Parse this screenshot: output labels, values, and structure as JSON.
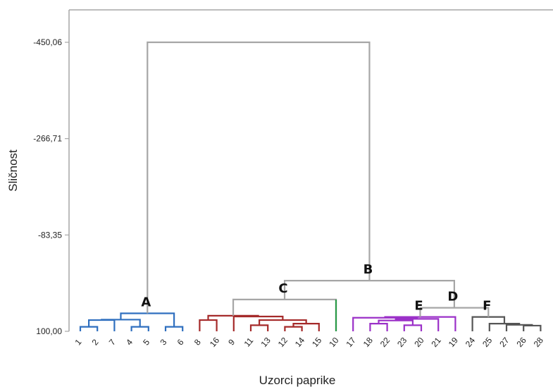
{
  "chart_data": {
    "type": "dendrogram",
    "ylabel": "Sličnost",
    "xlabel": "Uzorci paprike",
    "yticks": [
      {
        "value": -450.06,
        "label": "-450,06"
      },
      {
        "value": -266.71,
        "label": "-266,71"
      },
      {
        "value": -83.35,
        "label": "-83,35"
      },
      {
        "value": 100.0,
        "label": "100,00"
      }
    ],
    "ylim": [
      100.0,
      -540.0
    ],
    "leaves": [
      "1",
      "2",
      "7",
      "4",
      "5",
      "3",
      "6",
      "8",
      "16",
      "9",
      "11",
      "13",
      "12",
      "14",
      "15",
      "10",
      "17",
      "18",
      "22",
      "23",
      "20",
      "21",
      "19",
      "24",
      "25",
      "27",
      "26",
      "28"
    ],
    "colors": {
      "A": "#2f6fbf",
      "C": "#a52a2a",
      "single": "#2a9a48",
      "E": "#9b30c8",
      "F": "#555555",
      "link": "#a6a6a6",
      "axis": "#a6a6a6"
    },
    "merges": [
      {
        "left": "1",
        "right": "2",
        "height": 91.4,
        "color": "A"
      },
      {
        "left": "4",
        "right": "5",
        "height": 91.4,
        "color": "A"
      },
      {
        "left": "3",
        "right": "6",
        "height": 91.4,
        "color": "A"
      },
      {
        "left": "m1",
        "right": "7",
        "height": 78.6,
        "color": "A"
      },
      {
        "left": "m4",
        "right": "m2",
        "height": 77.8,
        "color": "A"
      },
      {
        "left": "m5",
        "right": "m3",
        "height": 65.8,
        "color": "A"
      },
      {
        "left": "8",
        "right": "16",
        "height": 78.6,
        "color": "C"
      },
      {
        "left": "12",
        "right": "14",
        "height": 91.4,
        "color": "C"
      },
      {
        "left": "11",
        "right": "13",
        "height": 88.4,
        "color": "C"
      },
      {
        "left": "m8",
        "right": "15",
        "height": 85.4,
        "color": "C"
      },
      {
        "left": "m9",
        "right": "m10",
        "height": 78.6,
        "color": "C"
      },
      {
        "left": "9",
        "right": "m11",
        "height": 71.8,
        "color": "C"
      },
      {
        "left": "m7",
        "right": "m12",
        "height": 70.3,
        "color": "C"
      },
      {
        "left": "m13",
        "right": "10",
        "height": 39.5,
        "color": "link"
      },
      {
        "left": "23",
        "right": "20",
        "height": 88.4,
        "color": "E"
      },
      {
        "left": "18",
        "right": "22",
        "height": 85.4,
        "color": "E"
      },
      {
        "left": "m16",
        "right": "m15",
        "height": 79.4,
        "color": "E"
      },
      {
        "left": "m17",
        "right": "21",
        "height": 76.4,
        "color": "E"
      },
      {
        "left": "17",
        "right": "m18",
        "height": 74.2,
        "color": "E"
      },
      {
        "left": "m19",
        "right": "19",
        "height": 72.7,
        "color": "E"
      },
      {
        "left": "26",
        "right": "28",
        "height": 89.2,
        "color": "F"
      },
      {
        "left": "27",
        "right": "m21",
        "height": 87.7,
        "color": "F"
      },
      {
        "left": "25",
        "right": "m22",
        "height": 85.4,
        "color": "F"
      },
      {
        "left": "24",
        "right": "m23",
        "height": 72.7,
        "color": "F"
      },
      {
        "left": "m20",
        "right": "m24",
        "height": 55.2,
        "color": "link"
      },
      {
        "left": "m14",
        "right": "m25",
        "height": 3.6,
        "color": "link"
      },
      {
        "left": "m6",
        "right": "m26",
        "height": -450.06,
        "color": "link"
      }
    ],
    "cluster_labels": [
      {
        "text": "A",
        "merge": "m6"
      },
      {
        "text": "B",
        "merge": "m26"
      },
      {
        "text": "C",
        "merge": "m14"
      },
      {
        "text": "D",
        "merge": "m25"
      },
      {
        "text": "E",
        "merge": "m20"
      },
      {
        "text": "F",
        "merge": "m24"
      }
    ]
  }
}
